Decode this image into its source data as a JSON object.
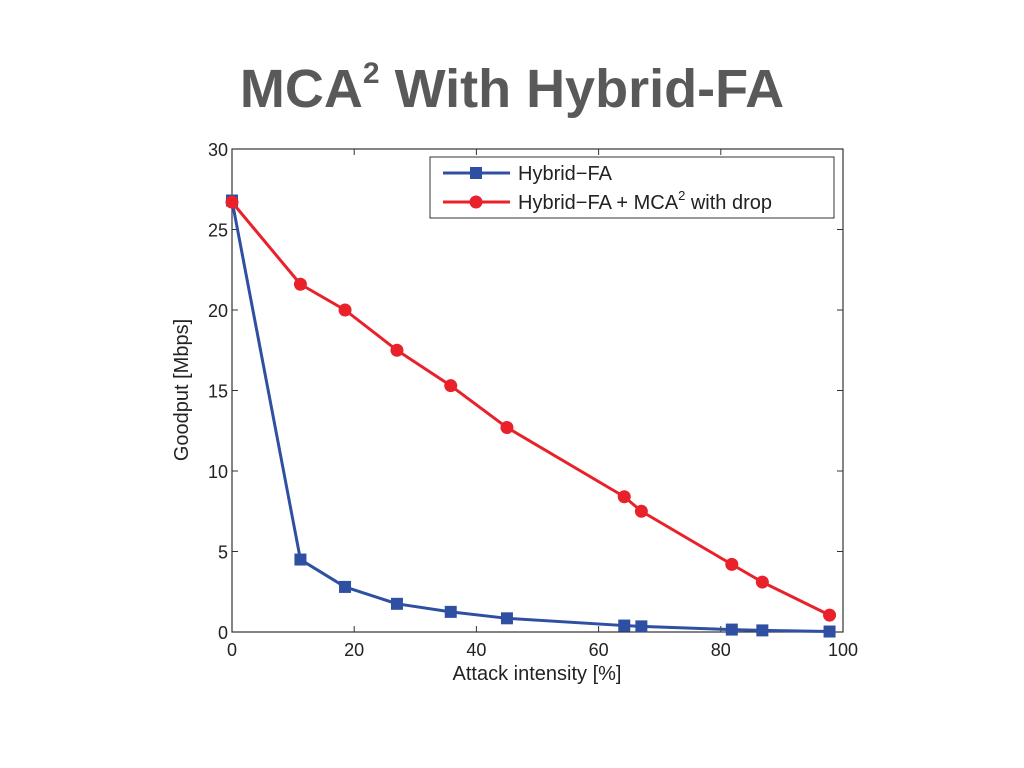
{
  "slide": {
    "title_main": "MCA",
    "title_sup": "2",
    "title_rest": " With Hybrid-FA"
  },
  "chart_data": {
    "type": "line",
    "title": "",
    "xlabel": "Attack intensity [%]",
    "ylabel": "Goodput [Mbps]",
    "xlim": [
      0,
      100
    ],
    "ylim": [
      0,
      30
    ],
    "xticks": [
      0,
      20,
      40,
      60,
      80,
      100
    ],
    "yticks": [
      0,
      5,
      10,
      15,
      20,
      25,
      30
    ],
    "grid": false,
    "legend_position": "top-right",
    "series": [
      {
        "name": "Hybrid−FA",
        "color": "#2f4fa3",
        "marker": "square",
        "x": [
          0,
          11.2,
          18.5,
          27,
          35.8,
          45,
          64.2,
          67,
          81.8,
          86.8,
          97.8
        ],
        "y": [
          26.8,
          4.5,
          2.8,
          1.75,
          1.25,
          0.85,
          0.4,
          0.35,
          0.15,
          0.1,
          0.03
        ]
      },
      {
        "name": "Hybrid−FA + MCA",
        "name_sup": "2",
        "name_rest": " with drop",
        "color": "#e8212a",
        "marker": "circle",
        "x": [
          0,
          11.2,
          18.5,
          27,
          35.8,
          45,
          64.2,
          67,
          81.8,
          86.8,
          97.8
        ],
        "y": [
          26.7,
          21.6,
          20.0,
          17.5,
          15.3,
          12.7,
          8.4,
          7.5,
          4.2,
          3.1,
          1.05
        ]
      }
    ]
  }
}
